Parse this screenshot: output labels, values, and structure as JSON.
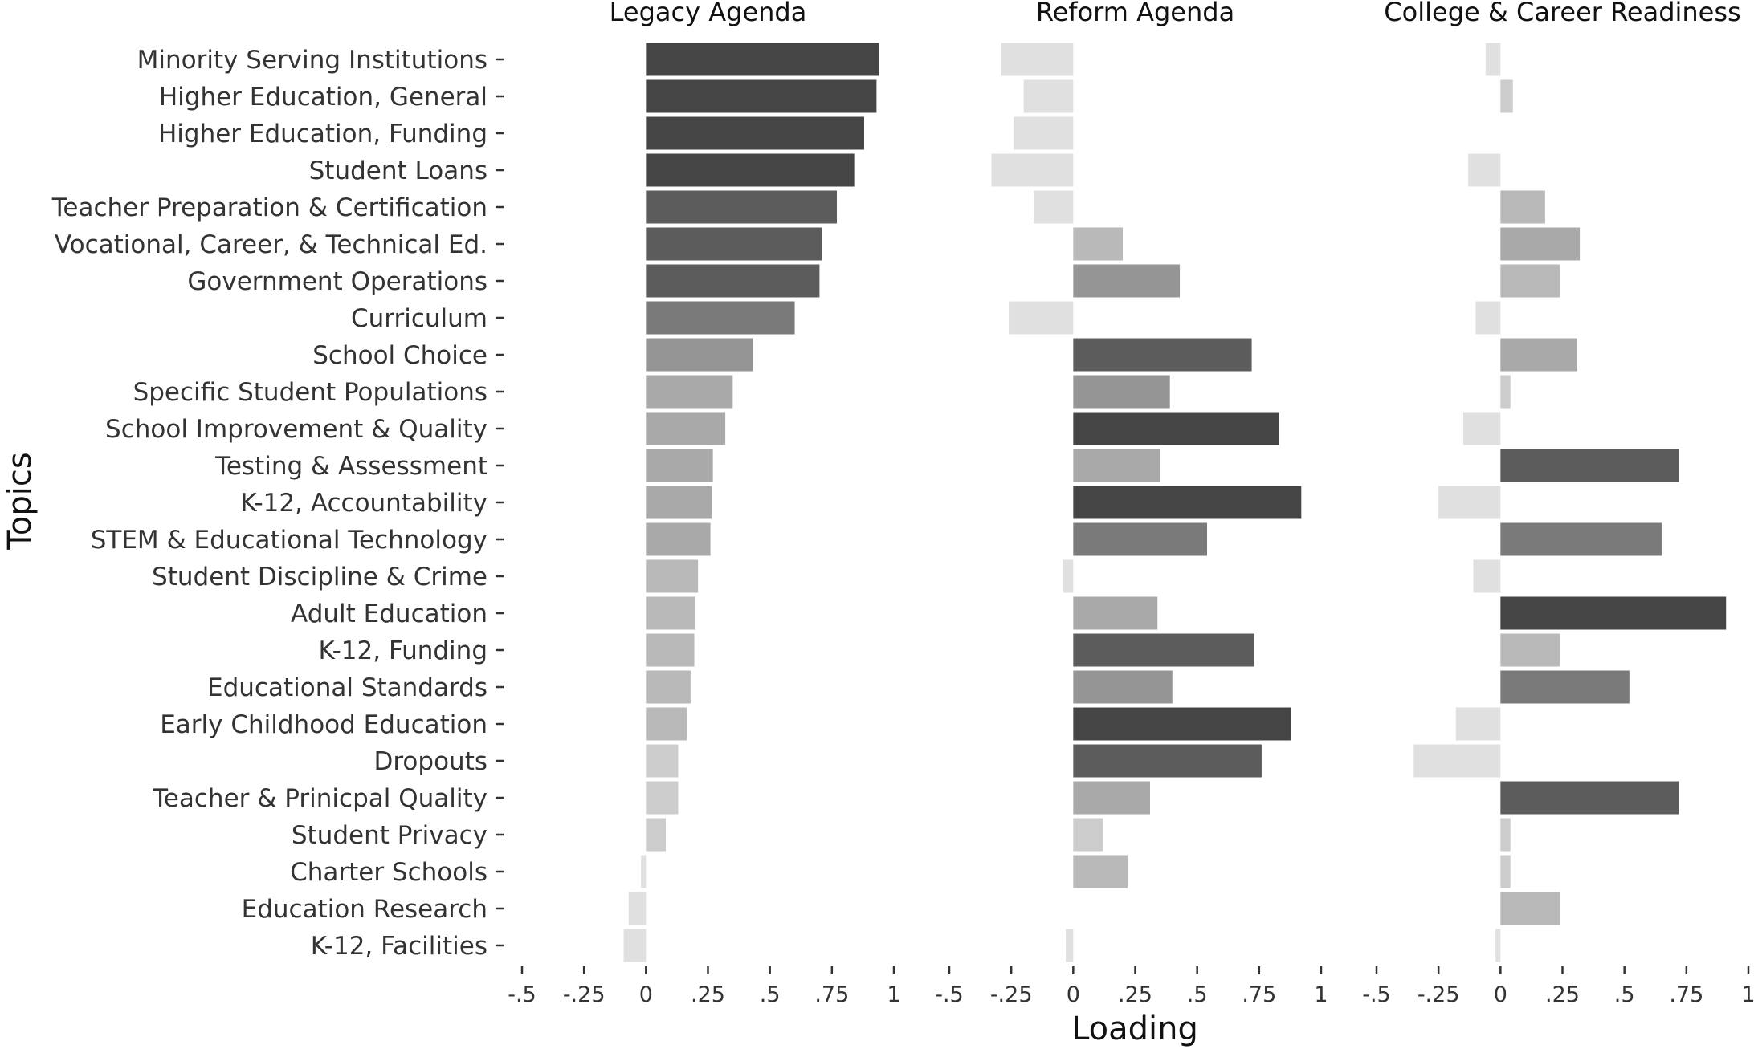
{
  "chart_data": {
    "type": "bar",
    "orientation": "horizontal",
    "xlabel": "Loading",
    "ylabel": "Topics",
    "xlim": [
      -0.5,
      1
    ],
    "xticks": [
      -0.5,
      -0.25,
      0,
      0.25,
      0.5,
      0.75,
      1
    ],
    "xtick_labels": [
      "-.5",
      "-.25",
      "0",
      ".25",
      ".5",
      ".75",
      "1"
    ],
    "grid": false,
    "legend": "none",
    "fill_encodes": "absolute loading (darker = larger |loading|)",
    "categories": [
      "Minority Serving Institutions",
      "Higher Education, General",
      "Higher Education, Funding",
      "Student Loans",
      "Teacher Preparation & Certification",
      "Vocational, Career, & Technical Ed.",
      "Government Operations",
      "Curriculum",
      "School Choice",
      "Specific Student Populations",
      "School Improvement & Quality",
      "Testing & Assessment",
      "K-12, Accountability",
      "STEM & Educational Technology",
      "Student Discipline & Crime",
      "Adult Education",
      "K-12, Funding",
      "Educational Standards",
      "Early Childhood Education",
      "Dropouts",
      "Teacher & Prinicpal Quality",
      "Student Privacy",
      "Charter Schools",
      "Education Research",
      "K-12, Facilities"
    ],
    "series": [
      {
        "name": "Legacy Agenda",
        "values": [
          0.94,
          0.93,
          0.88,
          0.84,
          0.77,
          0.71,
          0.7,
          0.6,
          0.43,
          0.35,
          0.32,
          0.27,
          0.265,
          0.26,
          0.21,
          0.2,
          0.195,
          0.18,
          0.165,
          0.13,
          0.13,
          0.08,
          -0.02,
          -0.07,
          -0.09
        ]
      },
      {
        "name": "Reform Agenda",
        "values": [
          -0.29,
          -0.2,
          -0.24,
          -0.33,
          -0.16,
          0.2,
          0.43,
          -0.26,
          0.72,
          0.39,
          0.83,
          0.35,
          0.92,
          0.54,
          -0.04,
          0.34,
          0.73,
          0.4,
          0.88,
          0.76,
          0.31,
          0.12,
          0.22,
          0.0,
          -0.03
        ]
      },
      {
        "name": "College & Career Readiness",
        "values": [
          -0.06,
          0.05,
          0.0,
          -0.13,
          0.18,
          0.32,
          0.24,
          -0.1,
          0.31,
          0.04,
          -0.15,
          0.72,
          -0.25,
          0.65,
          -0.11,
          0.91,
          0.24,
          0.52,
          -0.18,
          -0.35,
          0.72,
          0.04,
          0.04,
          0.24,
          -0.02
        ]
      }
    ]
  }
}
